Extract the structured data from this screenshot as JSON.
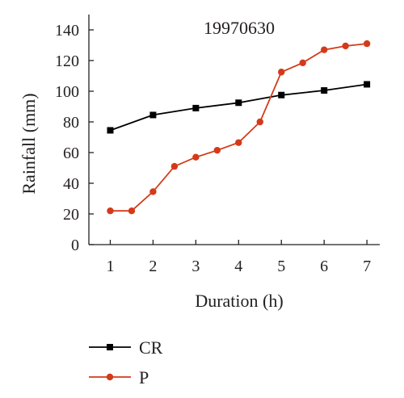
{
  "chart_data": {
    "type": "line",
    "title": "19970630",
    "xlabel": "Duration (h)",
    "ylabel": "Rainfall (mm)",
    "xlim": [
      0.5,
      7.3
    ],
    "ylim": [
      0,
      150
    ],
    "xticks": [
      1,
      2,
      3,
      4,
      5,
      6,
      7
    ],
    "yticks": [
      0,
      20,
      40,
      60,
      80,
      100,
      120,
      140
    ],
    "grid": false,
    "legend": "bottom-left",
    "series": [
      {
        "name": "CR",
        "color": "#000000",
        "marker": "square",
        "x": [
          1,
          2,
          3,
          4,
          5,
          6,
          7
        ],
        "y": [
          74.5,
          84.5,
          89,
          92.5,
          97.5,
          100.5,
          104.5
        ]
      },
      {
        "name": "P",
        "color": "#d43a1a",
        "marker": "circle",
        "x": [
          1,
          1.5,
          2,
          2.5,
          3,
          3.5,
          4,
          4.5,
          5,
          5.5,
          6,
          6.5,
          7
        ],
        "y": [
          22,
          22,
          34.5,
          51,
          57,
          61.5,
          66.5,
          80,
          112.5,
          118.5,
          127,
          129.5,
          131
        ]
      }
    ]
  }
}
